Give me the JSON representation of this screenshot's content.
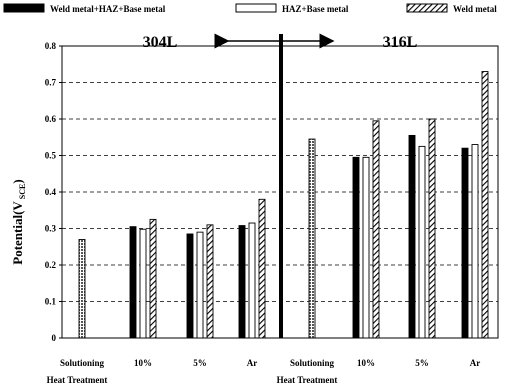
{
  "chart_data": {
    "type": "bar",
    "legend": [
      {
        "name": "Weld metal+HAZ+Base metal",
        "pattern": "solid"
      },
      {
        "name": "HAZ+Base metal",
        "pattern": "outline"
      },
      {
        "name": "Weld metal",
        "pattern": "hatch"
      }
    ],
    "ylabel": "Potential(V",
    "ylabel_sub": "SCE",
    "ylabel_end": ")",
    "ylim": [
      0,
      0.8
    ],
    "yticks": [
      "0",
      "0.1",
      "0.2",
      "0.3",
      "0.4",
      "0.5",
      "0.6",
      "0.7",
      "0.8"
    ],
    "region_labels": {
      "left": "304L",
      "right": "316L"
    },
    "groups": [
      {
        "label": "Solutioning",
        "sublabel": "Heat Treatment",
        "values": [
          null,
          null,
          0.27
        ],
        "single": true
      },
      {
        "label": "10%",
        "values": [
          0.305,
          0.298,
          0.325
        ]
      },
      {
        "label": "5%",
        "values": [
          0.285,
          0.29,
          0.31
        ]
      },
      {
        "label": "Ar",
        "values": [
          0.308,
          0.315,
          0.38
        ]
      },
      {
        "label": "Solutioning",
        "sublabel": "Heat Treatment",
        "values": [
          null,
          null,
          0.545
        ],
        "single": true
      },
      {
        "label": "10%",
        "values": [
          0.495,
          0.495,
          0.595
        ]
      },
      {
        "label": "5%",
        "values": [
          0.555,
          0.525,
          0.6
        ]
      },
      {
        "label": "Ar",
        "values": [
          0.52,
          0.53,
          0.73
        ]
      }
    ],
    "grid": true
  }
}
